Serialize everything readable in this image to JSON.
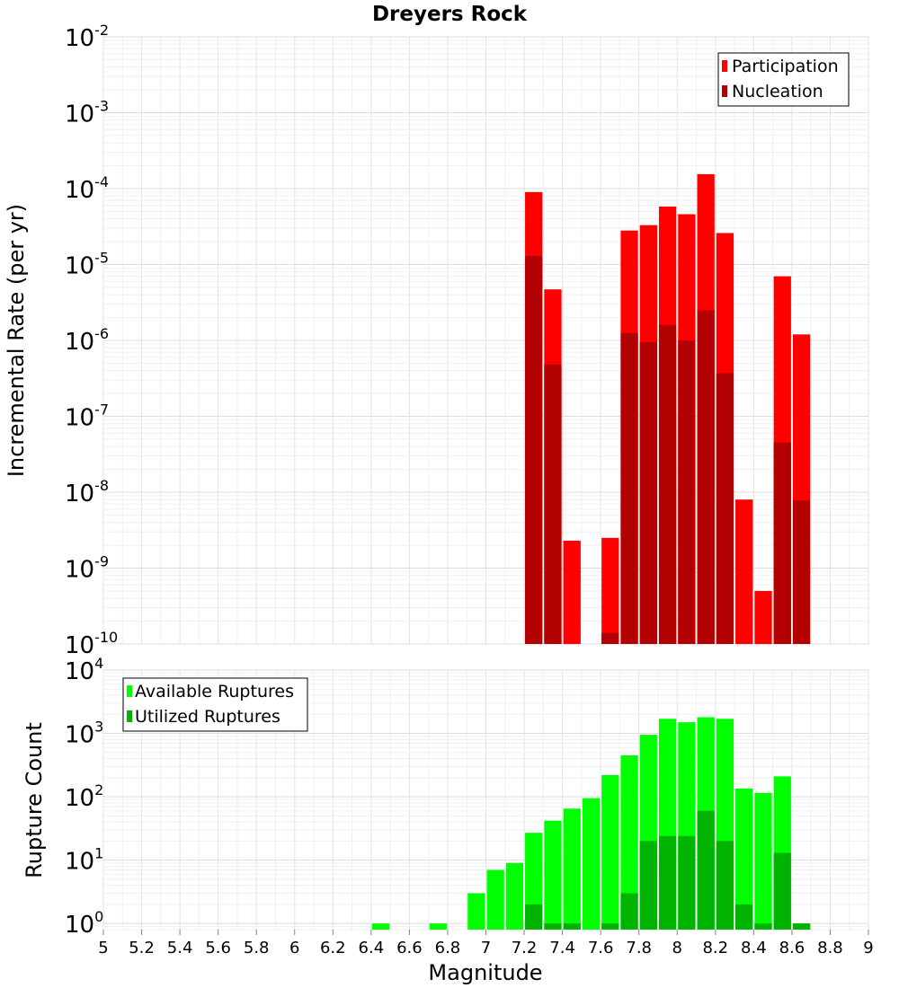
{
  "chart_data": [
    {
      "type": "bar",
      "title": "Dreyers Rock",
      "ylabel": "Incremental Rate (per yr)",
      "yscale": "log",
      "ylim": [
        1e-10,
        0.01
      ],
      "xlim": [
        5,
        9
      ],
      "ytick_base": "10",
      "ytick_exponents": [
        "-10",
        "-9",
        "-8",
        "-7",
        "-6",
        "-5",
        "-4",
        "-3",
        "-2"
      ],
      "legend_position": "top-right",
      "grid": true,
      "series": [
        {
          "name": "Participation",
          "color": "#ff0000",
          "x": [
            7.25,
            7.35,
            7.45,
            7.65,
            7.75,
            7.85,
            7.95,
            8.05,
            8.15,
            8.25,
            8.35,
            8.45,
            8.55,
            8.65
          ],
          "values": [
            9e-05,
            4.7e-06,
            2.3e-09,
            2.5e-09,
            2.8e-05,
            3.3e-05,
            5.8e-05,
            4.6e-05,
            0.000155,
            2.6e-05,
            8e-09,
            5e-10,
            7e-06,
            1.2e-06
          ]
        },
        {
          "name": "Nucleation",
          "color": "#b30000",
          "x": [
            7.25,
            7.35,
            7.65,
            7.75,
            7.85,
            7.95,
            8.05,
            8.15,
            8.25,
            8.55,
            8.65
          ],
          "values": [
            1.3e-05,
            4.8e-07,
            1.4e-10,
            1.25e-06,
            9.5e-07,
            1.6e-06,
            1e-06,
            2.5e-06,
            3.7e-07,
            4.5e-08,
            7.8e-09
          ]
        }
      ]
    },
    {
      "type": "bar",
      "title": "",
      "xlabel": "Magnitude",
      "ylabel": "Rupture Count",
      "yscale": "log",
      "ylim": [
        0.8,
        10000
      ],
      "xlim": [
        5,
        9
      ],
      "ytick_base": "10",
      "ytick_exponents": [
        "0",
        "1",
        "2",
        "3",
        "4"
      ],
      "xticks": [
        "5",
        "5.2",
        "5.4",
        "5.6",
        "5.8",
        "6",
        "6.2",
        "6.4",
        "6.6",
        "6.8",
        "7",
        "7.2",
        "7.4",
        "7.6",
        "7.8",
        "8",
        "8.2",
        "8.4",
        "8.6",
        "8.8",
        "9"
      ],
      "legend_position": "top-left",
      "grid": true,
      "series": [
        {
          "name": "Available Ruptures",
          "color": "#00ff00",
          "x": [
            6.45,
            6.75,
            6.95,
            7.05,
            7.15,
            7.25,
            7.35,
            7.45,
            7.55,
            7.65,
            7.75,
            7.85,
            7.95,
            8.05,
            8.15,
            8.25,
            8.35,
            8.45,
            8.55,
            8.65
          ],
          "values": [
            1,
            1,
            3,
            7,
            9,
            27,
            42,
            65,
            95,
            220,
            450,
            950,
            1700,
            1500,
            1800,
            1700,
            135,
            115,
            210,
            1
          ]
        },
        {
          "name": "Utilized Ruptures",
          "color": "#00b300",
          "x": [
            7.25,
            7.35,
            7.45,
            7.65,
            7.75,
            7.85,
            7.95,
            8.05,
            8.15,
            8.25,
            8.35,
            8.45,
            8.55,
            8.65
          ],
          "values": [
            2,
            1,
            1,
            1,
            3,
            20,
            24,
            24,
            60,
            20,
            2,
            1,
            13,
            1
          ]
        }
      ]
    }
  ]
}
